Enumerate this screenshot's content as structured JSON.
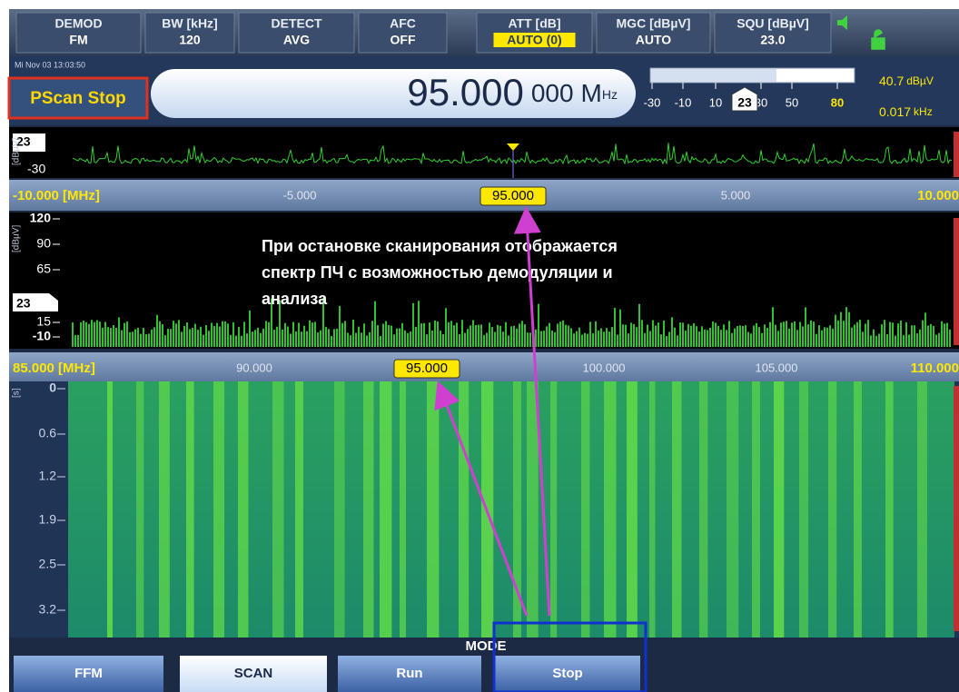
{
  "header": {
    "cells": [
      {
        "label": "DEMOD",
        "value": "FM"
      },
      {
        "label": "BW [kHz]",
        "value": "120"
      },
      {
        "label": "DETECT",
        "value": "AVG"
      },
      {
        "label": "AFC",
        "value": "OFF"
      },
      {
        "label": "ATT [dB]",
        "value": "AUTO (0)"
      },
      {
        "label": "MGC [dBµV]",
        "value": "AUTO"
      },
      {
        "label": "SQU [dBµV]",
        "value": "23.0"
      }
    ]
  },
  "status": {
    "datetime": "Mi Nov 03 13:03:50",
    "mode": "PScan Stop"
  },
  "frequency": {
    "main": "95.000",
    "fine": "000",
    "prefix": "M",
    "unit": "Hz"
  },
  "level_meter": {
    "ticks": [
      "-30",
      "-10",
      "10",
      "30",
      "50",
      "80"
    ],
    "marker": "23"
  },
  "readouts": [
    {
      "value": "40.7",
      "unit": "dBµV"
    },
    {
      "value": "0.017",
      "unit": "kHz"
    }
  ],
  "if_panel": {
    "unit": "[dBµV]",
    "y_labels": [
      "23",
      "-30"
    ]
  },
  "if_axis": {
    "start": "-10.000 [MHz]",
    "ticks": [
      "-5.000",
      "5.000"
    ],
    "center": "95.000",
    "end": "10.000"
  },
  "spectrum_panel": {
    "unit": "[dBµV]",
    "y_labels": [
      "120",
      "90",
      "65",
      "15",
      "-10"
    ],
    "squelch": "23"
  },
  "scan_axis": {
    "start": "85.000 [MHz]",
    "ticks": [
      "90.000",
      "100.000",
      "105.000"
    ],
    "center": "95.000",
    "end": "110.000"
  },
  "waterfall": {
    "unit": "[s]",
    "y_labels": [
      "0",
      "0.6",
      "1.2",
      "1.9",
      "2.5",
      "3.2"
    ]
  },
  "annotation": {
    "lines": [
      "При остановке сканирования отображается",
      "спектр ПЧ с возможностью демодуляции и",
      "анализа"
    ]
  },
  "mode_bar": {
    "title": "MODE",
    "buttons": [
      "FFM",
      "SCAN",
      "Run",
      "Stop"
    ]
  }
}
